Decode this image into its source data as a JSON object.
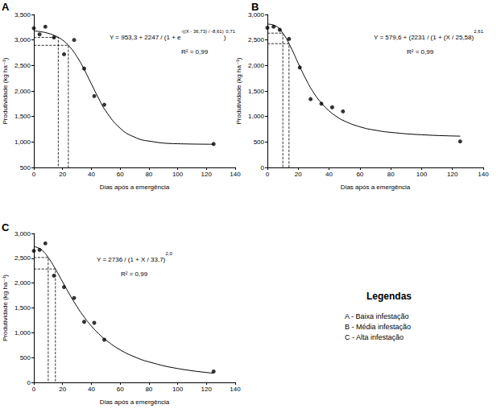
{
  "chart_data": [
    {
      "type": "scatter",
      "title": "A",
      "equation": [
        {
          "text": "Y = 953,3 + 2247 / (1 + e"
        },
        {
          "sup": "-((X - 36,73) / -8,61)"
        },
        {
          "text": ")"
        },
        {
          "sup": "0,71"
        }
      ],
      "r_squared": "R² = 0,99",
      "xlabel": "Dias após a emergência",
      "ylabel": "Produtividade (kg ha⁻¹)",
      "xlim": [
        0,
        140
      ],
      "xticks": [
        0,
        20,
        40,
        60,
        80,
        100,
        120,
        140
      ],
      "ylim": [
        500,
        3500
      ],
      "yticks": [
        500,
        1000,
        1500,
        2000,
        2500,
        3000,
        3500
      ],
      "grid": false,
      "series": [
        {
          "type": "scatter",
          "x": [
            0,
            4,
            8,
            14,
            21,
            28,
            35,
            42,
            49,
            125
          ],
          "values": [
            3230,
            3110,
            3260,
            3050,
            2720,
            3000,
            2440,
            1900,
            1730,
            960
          ],
          "color": "#000000",
          "marker": "circle"
        },
        {
          "type": "line",
          "x": [
            0,
            5,
            10,
            15,
            20,
            25,
            30,
            35,
            40,
            45,
            50,
            60,
            70,
            80,
            100,
            125
          ],
          "values": [
            3178,
            3161,
            3131,
            3081,
            2998,
            2864,
            2672,
            2423,
            2138,
            1857,
            1608,
            1270,
            1095,
            1017,
            965,
            955
          ],
          "color": "#000000",
          "line_style": "solid"
        }
      ],
      "critical_points": {
        "x": [
          17,
          24
        ],
        "values": [
          3051,
          2895
        ],
        "line_style": "dashed",
        "color": "#000000"
      }
    },
    {
      "type": "scatter",
      "title": "B",
      "equation": [
        {
          "text": "Y = 579,6 + (2231 / (1 + (X / 25,58)"
        },
        {
          "sup": "2,61"
        }
      ],
      "r_squared": "R² = 0,99",
      "xlabel": "Dias após a emergência",
      "ylabel": "Produtividade (kg ha⁻¹)",
      "xlim": [
        0,
        140
      ],
      "xticks": [
        0,
        20,
        40,
        60,
        80,
        100,
        120,
        140
      ],
      "ylim": [
        0,
        3000
      ],
      "yticks": [
        0,
        500,
        1000,
        1500,
        2000,
        2500,
        3000
      ],
      "grid": false,
      "series": [
        {
          "type": "scatter",
          "x": [
            0,
            4,
            8,
            14,
            21,
            28,
            35,
            42,
            49,
            125
          ],
          "values": [
            2740,
            2760,
            2700,
            2520,
            1960,
            1340,
            1250,
            1180,
            1100,
            510
          ],
          "color": "#000000",
          "marker": "circle"
        },
        {
          "type": "line",
          "x": [
            0,
            5,
            10,
            15,
            20,
            25,
            30,
            35,
            40,
            45,
            50,
            60,
            70,
            80,
            100,
            125
          ],
          "values": [
            2811,
            2780,
            2634,
            2367,
            2042,
            1730,
            1466,
            1264,
            1110,
            995,
            910,
            797,
            730,
            688,
            641,
            614
          ],
          "color": "#000000",
          "line_style": "solid"
        }
      ],
      "critical_points": {
        "x": [
          10,
          14
        ],
        "values": [
          2634,
          2428
        ],
        "line_style": "dashed",
        "color": "#000000"
      }
    },
    {
      "type": "scatter",
      "title": "C",
      "equation": [
        {
          "text": "Y = 2736 / (1 + X / 33,7)"
        },
        {
          "sup": "2,0"
        }
      ],
      "r_squared": "R² = 0,99",
      "xlabel": "Dias após a emergência",
      "ylabel": "Produtividade (kg ha⁻¹)",
      "xlim": [
        0,
        140
      ],
      "xticks": [
        0,
        20,
        40,
        60,
        80,
        100,
        120,
        140
      ],
      "ylim": [
        0,
        3000
      ],
      "yticks": [
        0,
        500,
        1000,
        1500,
        2000,
        2500,
        3000
      ],
      "grid": false,
      "series": [
        {
          "type": "scatter",
          "x": [
            0,
            4,
            8,
            14,
            21,
            28,
            35,
            42,
            49,
            125
          ],
          "values": [
            2650,
            2670,
            2800,
            2150,
            1920,
            1700,
            1220,
            1200,
            860,
            220
          ],
          "color": "#000000",
          "marker": "circle"
        },
        {
          "type": "line",
          "x": [
            0,
            5,
            10,
            15,
            20,
            25,
            30,
            35,
            40,
            45,
            50,
            60,
            70,
            80,
            100,
            125
          ],
          "values": [
            2736,
            2677,
            2515,
            2284,
            2024,
            1765,
            1527,
            1316,
            1136,
            983,
            855,
            656,
            515,
            413,
            279,
            185
          ],
          "color": "#000000",
          "line_style": "solid"
        }
      ],
      "critical_points": {
        "x": [
          10,
          15
        ],
        "values": [
          2515,
          2284
        ],
        "line_style": "dashed",
        "color": "#000000"
      }
    }
  ],
  "caption": {
    "title": "Legendas",
    "items": [
      "A - Baixa infestação",
      "B - Média infestação",
      "C - Alta infestação"
    ]
  }
}
